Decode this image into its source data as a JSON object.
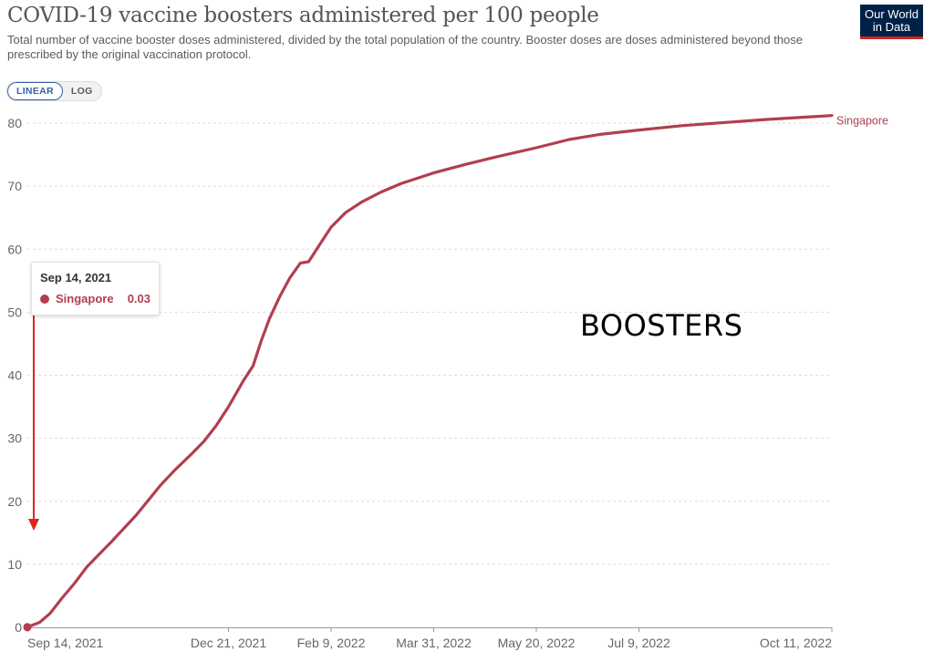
{
  "header": {
    "title": "COVID-19 vaccine boosters administered per 100 people",
    "subtitle": "Total number of vaccine booster doses administered, divided by the total population of the country. Booster doses are doses administered beyond those prescribed by the original vaccination protocol."
  },
  "logo": {
    "line1": "Our World",
    "line2": "in Data"
  },
  "controls": {
    "linear_label": "LINEAR",
    "log_label": "LOG",
    "selected": "linear"
  },
  "tooltip": {
    "date": "Sep 14, 2021",
    "series": "Singapore",
    "value": "0.03"
  },
  "annotation": {
    "text": "BOOSTERS",
    "arrow_color": "#e0251b"
  },
  "colors": {
    "series": "#b13f4e",
    "grid": "#dddddd",
    "axis_text": "#666666"
  },
  "chart_data": {
    "type": "line",
    "title": "COVID-19 vaccine boosters administered per 100 people",
    "xlabel": "",
    "ylabel": "",
    "ylim": [
      0,
      80
    ],
    "xlim": [
      "2021-09-14",
      "2022-10-11"
    ],
    "y_ticks": [
      0,
      10,
      20,
      30,
      40,
      50,
      60,
      70,
      80
    ],
    "x_ticks": [
      {
        "date": "2021-09-14",
        "label": "Sep 14, 2021"
      },
      {
        "date": "2021-12-21",
        "label": "Dec 21, 2021"
      },
      {
        "date": "2022-02-09",
        "label": "Feb 9, 2022"
      },
      {
        "date": "2022-03-31",
        "label": "Mar 31, 2022"
      },
      {
        "date": "2022-05-20",
        "label": "May 20, 2022"
      },
      {
        "date": "2022-07-09",
        "label": "Jul 9, 2022"
      },
      {
        "date": "2022-10-11",
        "label": "Oct 11, 2022"
      }
    ],
    "grid": true,
    "series": [
      {
        "name": "Singapore",
        "color": "#b13f4e",
        "points": [
          [
            "2021-09-14",
            0.03
          ],
          [
            "2021-09-20",
            0.8
          ],
          [
            "2021-09-25",
            2.2
          ],
          [
            "2021-10-01",
            4.7
          ],
          [
            "2021-10-07",
            7.0
          ],
          [
            "2021-10-13",
            9.6
          ],
          [
            "2021-10-19",
            11.6
          ],
          [
            "2021-10-25",
            13.6
          ],
          [
            "2021-10-31",
            15.7
          ],
          [
            "2021-11-06",
            17.8
          ],
          [
            "2021-11-12",
            20.2
          ],
          [
            "2021-11-18",
            22.6
          ],
          [
            "2021-11-25",
            25.0
          ],
          [
            "2021-12-03",
            27.5
          ],
          [
            "2021-12-09",
            29.5
          ],
          [
            "2021-12-15",
            32.0
          ],
          [
            "2021-12-21",
            35.0
          ],
          [
            "2021-12-28",
            39.0
          ],
          [
            "2022-01-02",
            41.5
          ],
          [
            "2022-01-06",
            45.5
          ],
          [
            "2022-01-10",
            49.0
          ],
          [
            "2022-01-15",
            52.5
          ],
          [
            "2022-01-20",
            55.5
          ],
          [
            "2022-01-25",
            57.8
          ],
          [
            "2022-01-29",
            58.0
          ],
          [
            "2022-02-03",
            60.5
          ],
          [
            "2022-02-09",
            63.5
          ],
          [
            "2022-02-16",
            65.8
          ],
          [
            "2022-02-24",
            67.5
          ],
          [
            "2022-03-05",
            69.0
          ],
          [
            "2022-03-15",
            70.4
          ],
          [
            "2022-03-31",
            72.1
          ],
          [
            "2022-04-15",
            73.4
          ],
          [
            "2022-04-30",
            74.6
          ],
          [
            "2022-05-20",
            76.1
          ],
          [
            "2022-06-05",
            77.4
          ],
          [
            "2022-06-20",
            78.2
          ],
          [
            "2022-07-09",
            78.9
          ],
          [
            "2022-07-30",
            79.6
          ],
          [
            "2022-08-20",
            80.1
          ],
          [
            "2022-09-10",
            80.6
          ],
          [
            "2022-10-11",
            81.2
          ]
        ]
      }
    ]
  }
}
